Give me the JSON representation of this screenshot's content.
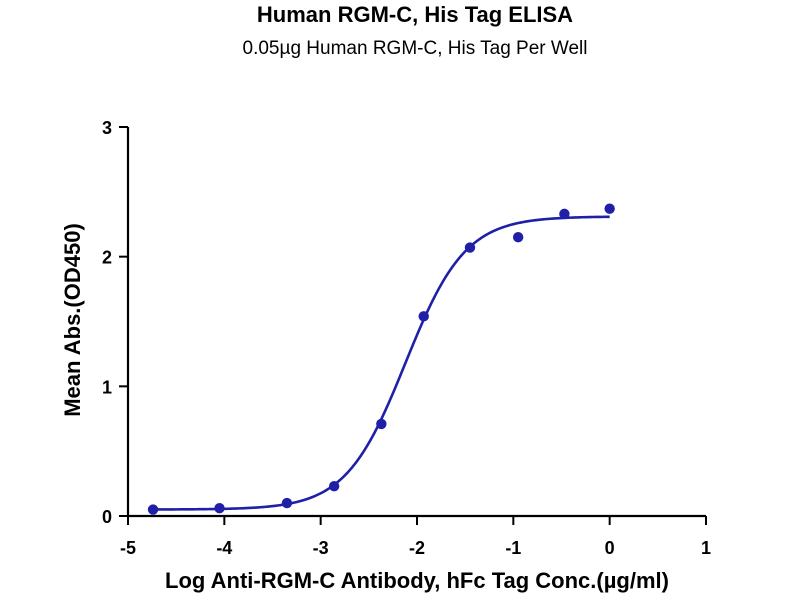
{
  "chart_data": {
    "type": "scatter",
    "title": "Human RGM-C, His Tag ELISA",
    "subtitle": "0.05µg Human RGM-C, His Tag Per Well",
    "xlabel": "Log Anti-RGM-C Antibody, hFc Tag Conc.(µg/ml)",
    "ylabel": "Mean Abs.(OD450)",
    "xlim": [
      -5,
      1
    ],
    "ylim": [
      0,
      3
    ],
    "xticks": [
      -5,
      -4,
      -3,
      -2,
      -1,
      0,
      1
    ],
    "yticks": [
      0,
      1,
      2,
      3
    ],
    "grid": false,
    "color": "#1f1fa8",
    "series": [
      {
        "x": [
          -4.74,
          -4.05,
          -3.35,
          -2.86,
          -2.37,
          -1.93,
          -1.45,
          -0.95,
          -0.47,
          0.0
        ],
        "y": [
          0.05,
          0.06,
          0.1,
          0.23,
          0.71,
          1.54,
          2.07,
          2.15,
          2.33,
          2.37
        ],
        "fit": {
          "model": "4PL",
          "bottom": 0.05,
          "top": 2.31,
          "log_ec50": -2.12,
          "hill_slope": 1.4
        }
      }
    ]
  }
}
